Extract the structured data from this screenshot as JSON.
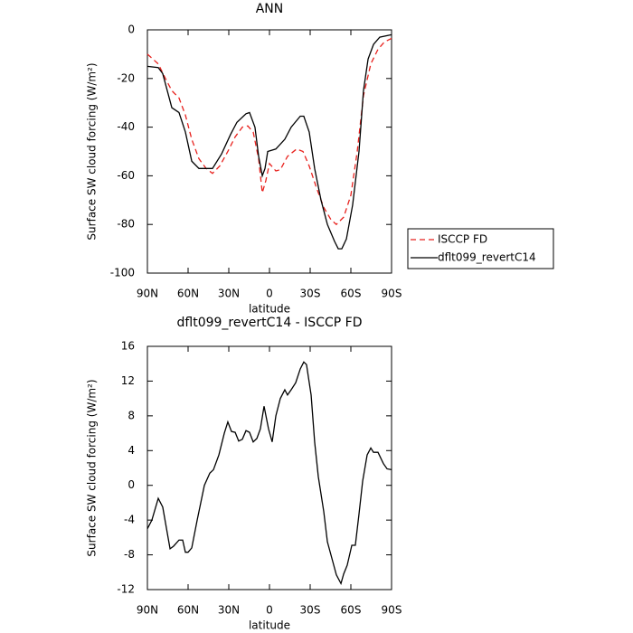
{
  "chart_data": [
    {
      "type": "line",
      "title": "ANN",
      "x_label": "latitude",
      "y_label": "Surface SW cloud forcing (W/m²)",
      "xlim": [
        90,
        -90
      ],
      "xticks": [
        {
          "value": 90,
          "label": "90N"
        },
        {
          "value": 60,
          "label": "60N"
        },
        {
          "value": 30,
          "label": "30N"
        },
        0,
        {
          "value": -30,
          "label": "30S"
        },
        {
          "value": -60,
          "label": "60S"
        },
        {
          "value": -90,
          "label": "90S"
        }
      ],
      "ylim": [
        -100,
        0
      ],
      "yticks": [
        -100,
        -80,
        -60,
        -40,
        -20,
        0
      ],
      "legend": "right",
      "series": [
        {
          "name": "ISCCP FD",
          "color": "#e8211d",
          "dash": "dashed",
          "x": [
            90,
            82,
            76.7,
            72,
            66.7,
            62,
            57.3,
            52,
            46.7,
            42,
            36.7,
            30.7,
            25.3,
            20,
            16,
            12,
            8,
            5.3,
            2.7,
            0,
            -4.7,
            -8,
            -13.3,
            -20,
            -24.7,
            -29.3,
            -34.7,
            -40,
            -45.3,
            -49.3,
            -54.7,
            -60,
            -64.7,
            -69.3,
            -74.7,
            -80,
            -84.7,
            -90
          ],
          "values": [
            -10,
            -14,
            -20,
            -25,
            -28,
            -35,
            -45,
            -53,
            -57,
            -59,
            -56,
            -50,
            -44,
            -40,
            -39.5,
            -42,
            -53,
            -67,
            -62,
            -55,
            -58,
            -57.5,
            -52,
            -49,
            -50,
            -56,
            -65,
            -73,
            -78,
            -80,
            -77,
            -68,
            -50,
            -27,
            -14,
            -8,
            -5,
            -3.5
          ]
        },
        {
          "name": "dflt099_revertC14",
          "color": "#000000",
          "dash": "solid",
          "x": [
            90,
            82,
            78.7,
            72,
            66.7,
            62,
            57.3,
            52,
            42,
            35.3,
            28.7,
            24,
            17.3,
            14.7,
            10.7,
            8,
            5.3,
            3.3,
            1.3,
            -4.7,
            -11.3,
            -16,
            -22.7,
            -25.3,
            -29.3,
            -33.3,
            -38,
            -42.7,
            -48,
            -50.7,
            -53.3,
            -56.7,
            -61.3,
            -66,
            -69.3,
            -72.7,
            -76.7,
            -81.3,
            -90
          ],
          "values": [
            -15,
            -15.5,
            -18,
            -32,
            -34,
            -42,
            -54,
            -57,
            -57,
            -51,
            -43,
            -38,
            -34.5,
            -34,
            -40,
            -52,
            -60,
            -57,
            -50,
            -49,
            -45,
            -40,
            -35.5,
            -35.5,
            -42,
            -57,
            -70,
            -80,
            -87,
            -90,
            -90,
            -86,
            -72,
            -50,
            -25,
            -12,
            -6,
            -3,
            -2
          ]
        }
      ]
    },
    {
      "type": "line",
      "title": "dflt099_revertC14 - ISCCP FD",
      "x_label": "latitude",
      "y_label": "Surface SW cloud forcing (W/m²)",
      "xlim": [
        90,
        -90
      ],
      "xticks": [
        {
          "value": 90,
          "label": "90N"
        },
        {
          "value": 60,
          "label": "60N"
        },
        {
          "value": 30,
          "label": "30N"
        },
        0,
        {
          "value": -30,
          "label": "30S"
        },
        {
          "value": -60,
          "label": "60S"
        },
        {
          "value": -90,
          "label": "90S"
        }
      ],
      "ylim": [
        -12,
        16
      ],
      "yticks": [
        -12,
        -8,
        -4,
        0,
        4,
        8,
        12,
        16
      ],
      "series": [
        {
          "color": "#000000",
          "dash": "solid",
          "x": [
            90,
            86.7,
            82,
            78.7,
            73.3,
            70.7,
            66.7,
            64,
            62,
            60,
            57.3,
            53.3,
            48,
            44,
            41.3,
            37.3,
            33.3,
            30.7,
            28,
            25.3,
            22.7,
            20,
            17.3,
            14.7,
            12,
            9.3,
            6.7,
            4,
            0.7,
            -2,
            -4.7,
            -8,
            -11.3,
            -13.3,
            -16,
            -19.3,
            -22.7,
            -25.3,
            -27.3,
            -30.7,
            -33.3,
            -36,
            -40,
            -42.7,
            -46.7,
            -49.3,
            -52.7,
            -54.7,
            -57.3,
            -60.7,
            -63.3,
            -66,
            -68.7,
            -72,
            -74.7,
            -76.7,
            -80,
            -84,
            -86.7,
            -90
          ],
          "values": [
            -5,
            -4,
            -1.5,
            -2.5,
            -7.3,
            -7,
            -6.3,
            -6.3,
            -7.7,
            -7.7,
            -7.2,
            -4,
            0,
            1.4,
            1.8,
            3.5,
            6,
            7.3,
            6.2,
            6.1,
            5.1,
            5.3,
            6.3,
            6.1,
            5,
            5.4,
            6.5,
            9.1,
            6.5,
            5,
            8,
            10,
            11,
            10.4,
            11,
            11.8,
            13.4,
            14.2,
            13.9,
            10.4,
            5,
            1,
            -3,
            -6.5,
            -8.8,
            -10.3,
            -11.3,
            -10.2,
            -9.2,
            -6.9,
            -6.9,
            -3.3,
            0.5,
            3.5,
            4.3,
            3.8,
            3.8,
            2.5,
            1.9,
            1.8
          ]
        }
      ]
    }
  ]
}
